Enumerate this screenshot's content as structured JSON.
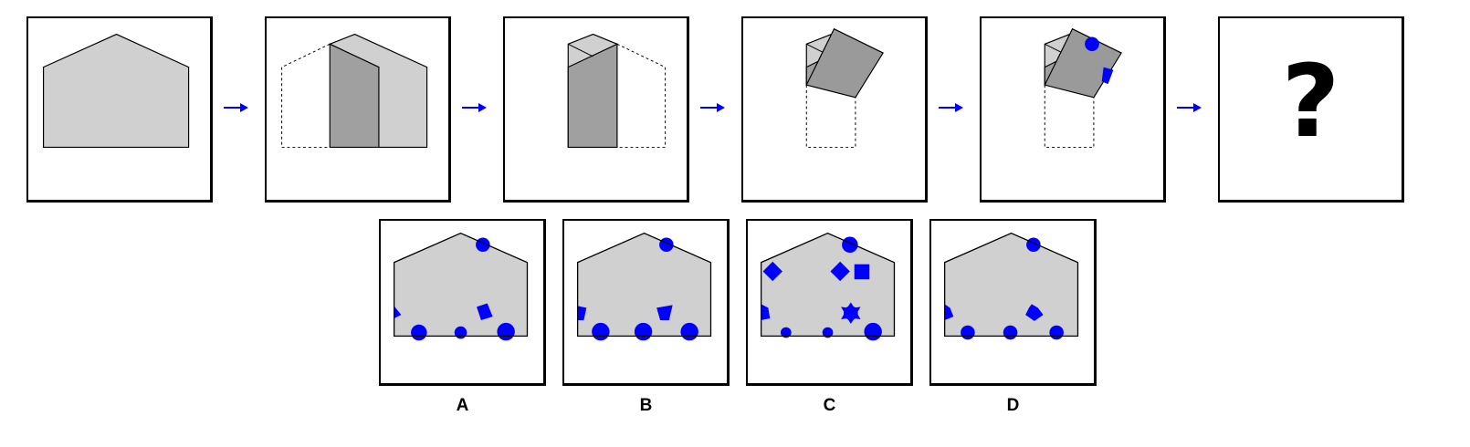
{
  "colors": {
    "paper": "#d0d0d0",
    "folded": "#a0a0a0",
    "folded_dark": "#9a9a9a",
    "hole": "#0000ff",
    "arrow": "#0000ff",
    "outline": "#000000"
  },
  "sequence": {
    "question_mark": "?",
    "arrow_icon": "right-arrow-icon"
  },
  "options": [
    {
      "label": "A"
    },
    {
      "label": "B"
    },
    {
      "label": "C"
    },
    {
      "label": "D"
    }
  ]
}
